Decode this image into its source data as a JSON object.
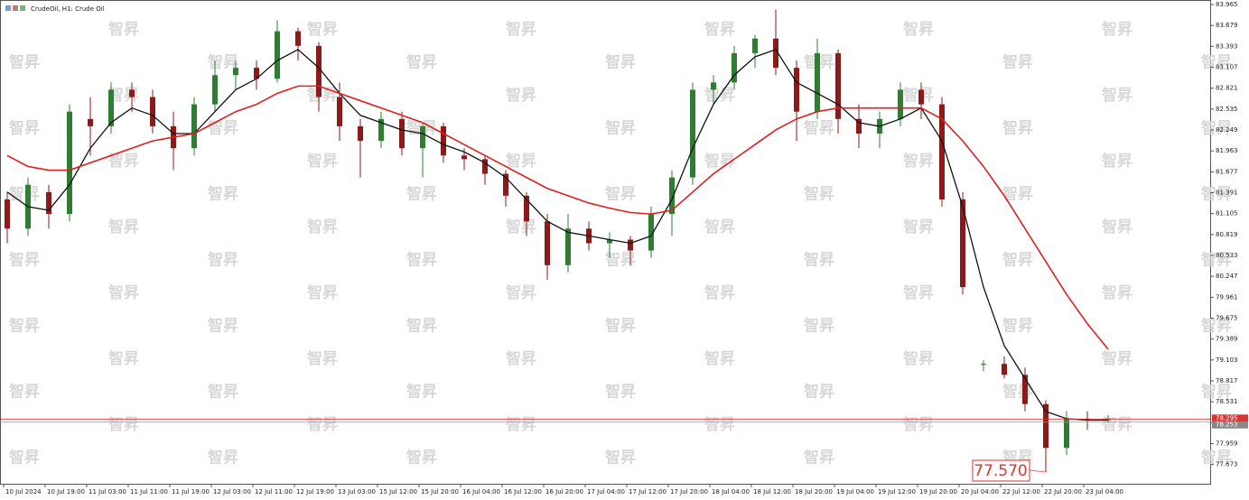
{
  "chart_data": {
    "type": "candlestick",
    "title": "CrudeOil, H1:  Crude Oil",
    "watermark": "智昇",
    "categories": [
      "10 Jul 2024",
      null,
      "10 Jul 19:00",
      null,
      "11 Jul 03:00",
      null,
      "11 Jul 11:00",
      null,
      "11 Jul 19:00",
      null,
      "12 Jul 03:00",
      null,
      "12 Jul 11:00",
      null,
      "12 Jul 19:00",
      null,
      "13 Jul 03:00",
      null,
      "15 Jul 12:00",
      null,
      "15 Jul 20:00",
      null,
      "16 Jul 04:00",
      null,
      "16 Jul 12:00",
      null,
      "16 Jul 20:00",
      null,
      "17 Jul 04:00",
      null,
      "17 Jul 12:00",
      null,
      "17 Jul 20:00",
      null,
      "18 Jul 04:00",
      null,
      "18 Jul 12:00",
      null,
      "18 Jul 20:00",
      null,
      "19 Jul 04:00",
      null,
      "19 Jul 12:00",
      null,
      "19 Jul 20:00",
      null,
      "20 Jul 04:00",
      null,
      "22 Jul 12:00",
      null,
      "22 Jul 20:00",
      null,
      "23 Jul 04:00",
      null
    ],
    "open": [
      81.3,
      80.9,
      81.4,
      81.1,
      82.4,
      82.3,
      82.8,
      82.7,
      82.3,
      82.0,
      82.6,
      83.0,
      83.1,
      82.95,
      83.6,
      83.4,
      82.7,
      82.3,
      82.1,
      82.4,
      82.0,
      82.3,
      81.9,
      81.85,
      81.65,
      81.35,
      81.0,
      80.4,
      80.9,
      80.7,
      80.75,
      80.6,
      81.1,
      81.6,
      82.8,
      82.9,
      83.3,
      83.5,
      83.1,
      82.5,
      83.3,
      82.4,
      82.2,
      82.4,
      82.8,
      82.6,
      81.3,
      79.05,
      79.05,
      78.9,
      78.5,
      77.9,
      78.3,
      78.28
    ],
    "high": [
      81.4,
      81.6,
      81.5,
      82.6,
      82.7,
      82.9,
      82.9,
      82.8,
      82.5,
      82.7,
      83.2,
      83.2,
      83.2,
      83.75,
      83.65,
      83.45,
      82.9,
      82.4,
      82.5,
      82.5,
      82.35,
      82.35,
      82.0,
      81.9,
      81.7,
      81.4,
      81.1,
      81.1,
      81.0,
      80.85,
      80.8,
      81.2,
      81.7,
      82.9,
      83.0,
      83.4,
      83.55,
      83.9,
      83.2,
      83.5,
      83.35,
      82.6,
      82.5,
      82.9,
      82.9,
      82.7,
      81.4,
      79.1,
      79.15,
      79.0,
      78.55,
      78.4,
      78.4,
      78.35
    ],
    "low": [
      80.7,
      80.8,
      80.9,
      81.0,
      81.9,
      82.2,
      82.5,
      82.2,
      81.7,
      81.9,
      82.5,
      82.8,
      82.8,
      82.9,
      83.2,
      82.5,
      82.1,
      81.6,
      82.0,
      81.9,
      81.6,
      81.8,
      81.7,
      81.5,
      81.2,
      80.8,
      80.2,
      80.3,
      80.6,
      80.5,
      80.4,
      80.5,
      80.8,
      81.5,
      82.6,
      82.8,
      83.1,
      83.0,
      82.1,
      82.4,
      82.2,
      82.0,
      82.0,
      82.3,
      82.4,
      81.2,
      80.0,
      78.95,
      78.85,
      78.4,
      77.57,
      77.8,
      78.15,
      78.25
    ],
    "close": [
      80.9,
      81.5,
      81.1,
      82.5,
      82.3,
      82.8,
      82.7,
      82.3,
      82.0,
      82.6,
      83.0,
      83.1,
      82.95,
      83.6,
      83.4,
      82.7,
      82.3,
      82.1,
      82.4,
      82.0,
      82.3,
      81.9,
      81.85,
      81.65,
      81.35,
      81.0,
      80.4,
      80.9,
      80.7,
      80.75,
      80.6,
      81.1,
      81.6,
      82.8,
      82.9,
      83.3,
      83.5,
      83.1,
      82.5,
      83.3,
      82.4,
      82.2,
      82.4,
      82.8,
      82.6,
      81.3,
      80.1,
      79.05,
      78.9,
      78.5,
      77.9,
      78.3,
      78.28,
      78.3
    ],
    "up_color": "#2e7d32",
    "down_color": "#8b1a1a",
    "series": [
      {
        "color": "#111111",
        "values": [
          81.4,
          81.2,
          81.15,
          81.5,
          82.0,
          82.35,
          82.55,
          82.45,
          82.2,
          82.2,
          82.5,
          82.8,
          82.95,
          83.2,
          83.35,
          83.1,
          82.75,
          82.45,
          82.35,
          82.25,
          82.2,
          82.05,
          81.95,
          81.8,
          81.6,
          81.3,
          81.0,
          80.85,
          80.8,
          80.75,
          80.7,
          80.8,
          81.3,
          82.0,
          82.6,
          83.0,
          83.25,
          83.35,
          82.9,
          82.75,
          82.6,
          82.35,
          82.3,
          82.4,
          82.55,
          82.1,
          81.2,
          80.1,
          79.3,
          78.85,
          78.4,
          78.3,
          78.28,
          78.28
        ]
      },
      {
        "color": "#e02020",
        "values": [
          81.9,
          81.75,
          81.7,
          81.7,
          81.8,
          81.9,
          82.0,
          82.1,
          82.15,
          82.2,
          82.35,
          82.5,
          82.6,
          82.75,
          82.85,
          82.85,
          82.75,
          82.65,
          82.55,
          82.45,
          82.35,
          82.2,
          82.05,
          81.9,
          81.75,
          81.6,
          81.45,
          81.35,
          81.25,
          81.18,
          81.12,
          81.1,
          81.15,
          81.4,
          81.65,
          81.85,
          82.05,
          82.25,
          82.4,
          82.5,
          82.55,
          82.55,
          82.55,
          82.55,
          82.55,
          82.4,
          82.1,
          81.75,
          81.35,
          80.9,
          80.45,
          80.0,
          79.6,
          79.25
        ]
      }
    ],
    "ylim": [
      77.41,
      84.015
    ],
    "yticks": [
      83.965,
      83.679,
      83.393,
      83.107,
      82.821,
      82.535,
      82.249,
      81.963,
      81.677,
      81.391,
      81.105,
      80.819,
      80.533,
      80.247,
      79.961,
      79.675,
      79.389,
      79.103,
      78.817,
      78.531,
      78.245,
      77.959,
      77.673
    ],
    "price_lines": [
      {
        "value": 78.295,
        "label": "78.295"
      },
      {
        "value": 78.253,
        "label": "78.253"
      }
    ],
    "annotation": "77.570",
    "grid": false
  }
}
